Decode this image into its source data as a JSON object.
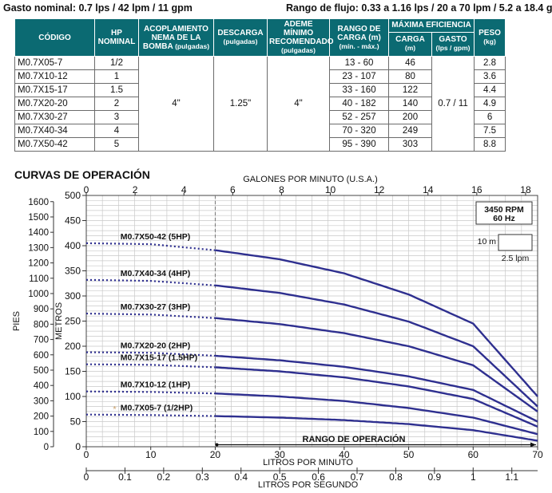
{
  "header": {
    "left": "Gasto nominal: 0.7 lps / 42 lpm / 11 gpm",
    "right": "Rango de flujo:  0.33 a 1.16 lps / 20 a 70 lpm / 5.2 a 18.4 gpm"
  },
  "table": {
    "headers": {
      "code": "CÓDIGO",
      "hp": "HP NOMINAL",
      "coupling": "ACOPLAMIENTO NEMA DE LA BOMBA",
      "coupling_unit": "(pulgadas)",
      "discharge": "DESCARGA",
      "discharge_unit": "(pulgadas)",
      "casing": "ADEME MÍNIMO RECOMENDADO",
      "casing_unit": "(pulgadas)",
      "range": "RANGO DE CARGA (m)",
      "range_unit": "(mín. - máx.)",
      "efficiency": "MÁXIMA EFICIENCIA",
      "load": "CARGA",
      "load_unit": "(m)",
      "flow": "GASTO",
      "flow_unit": "(lps / gpm)",
      "weight": "PESO",
      "weight_unit": "(kg)"
    },
    "rows": [
      {
        "code": "M0.7X05-7",
        "hp": "1/2",
        "range": "13 - 60",
        "load": "46",
        "weight": "2.8"
      },
      {
        "code": "M0.7X10-12",
        "hp": "1",
        "range": "23 - 107",
        "load": "80",
        "weight": "3.6"
      },
      {
        "code": "M0.7X15-17",
        "hp": "1.5",
        "range": "33 - 160",
        "load": "122",
        "weight": "4.4"
      },
      {
        "code": "M0.7X20-20",
        "hp": "2",
        "range": "40 - 182",
        "load": "140",
        "weight": "4.9"
      },
      {
        "code": "M0.7X30-27",
        "hp": "3",
        "range": "52 - 257",
        "load": "200",
        "weight": "6"
      },
      {
        "code": "M0.7X40-34",
        "hp": "4",
        "range": "70 - 320",
        "load": "249",
        "weight": "7.5"
      },
      {
        "code": "M0.7X50-42",
        "hp": "5",
        "range": "95 - 390",
        "load": "303",
        "weight": "8.8"
      }
    ],
    "merged": {
      "coupling": "4\"",
      "discharge": "1.25\"",
      "casing": "4\"",
      "flow": "0.7 / 11"
    }
  },
  "chart_data": {
    "type": "line",
    "title": "CURVAS DE OPERACIÓN",
    "xlabel": "LITROS POR MINUTO",
    "ylabel": "METROS",
    "xlim": [
      0,
      70
    ],
    "ylim": [
      0,
      500
    ],
    "xticks": [
      0,
      10,
      20,
      30,
      40,
      50,
      60,
      70
    ],
    "yticks": [
      0,
      50,
      100,
      150,
      200,
      250,
      300,
      350,
      400,
      450,
      500
    ],
    "grid": true,
    "top_axis": {
      "label": "GALONES POR MINUTO (U.S.A.)",
      "lim": [
        0,
        18.5
      ],
      "ticks": [
        0,
        2,
        4,
        6,
        8,
        10,
        12,
        14,
        16,
        18
      ]
    },
    "left_axis": {
      "label": "PIES",
      "lim": [
        0,
        1640
      ],
      "ticks": [
        0,
        100,
        200,
        300,
        400,
        500,
        600,
        700,
        800,
        900,
        1000,
        1100,
        1200,
        1300,
        1400,
        1500,
        1600
      ]
    },
    "bottom_axis2": {
      "label": "LITROS POR SEGUNDO",
      "lim": [
        0,
        1.167
      ],
      "ticks": [
        "0",
        "0.1",
        "0.2",
        "0.3",
        "0.4",
        "0.5",
        "0.6",
        "0.7",
        "0.8",
        "0.9",
        "1",
        "1.1"
      ]
    },
    "operating_range": {
      "label": "RANGO DE OPERACIÓN",
      "start": 20,
      "end": 70
    },
    "legend_box": {
      "rpm": "3450 RPM",
      "hz": "60 Hz",
      "scale_y": "10 m",
      "scale_x": "2.5 lpm"
    },
    "marker_note": "*",
    "series": [
      {
        "name": "M0.7X05-7 (1/2HP)",
        "x": [
          0,
          10,
          20,
          30,
          40,
          50,
          60,
          70
        ],
        "y": [
          64,
          63,
          61,
          58,
          53,
          45,
          33,
          12
        ]
      },
      {
        "name": "M0.7X10-12 (1HP)",
        "x": [
          0,
          10,
          20,
          30,
          40,
          50,
          60,
          70
        ],
        "y": [
          110,
          109,
          106,
          100,
          91,
          77,
          58,
          25
        ]
      },
      {
        "name": "M0.7X15-17 (1.5HP)",
        "x": [
          0,
          10,
          20,
          30,
          40,
          50,
          60,
          70
        ],
        "y": [
          164,
          163,
          158,
          150,
          138,
          120,
          95,
          40
        ]
      },
      {
        "name": "M0.7X20-20 (2HP)",
        "x": [
          0,
          10,
          20,
          30,
          40,
          50,
          60,
          70
        ],
        "y": [
          188,
          187,
          181,
          172,
          159,
          140,
          113,
          50
        ]
      },
      {
        "name": "M0.7X30-27 (3HP)",
        "x": [
          0,
          10,
          20,
          30,
          40,
          50,
          60,
          70
        ],
        "y": [
          265,
          263,
          256,
          244,
          226,
          200,
          162,
          70
        ]
      },
      {
        "name": "M0.7X40-34 (4HP)",
        "x": [
          0,
          10,
          20,
          30,
          40,
          50,
          60,
          70
        ],
        "y": [
          332,
          330,
          321,
          306,
          283,
          249,
          200,
          80
        ]
      },
      {
        "name": "M0.7X50-42 (5HP)",
        "x": [
          0,
          10,
          20,
          30,
          40,
          50,
          60,
          70
        ],
        "y": [
          405,
          403,
          391,
          373,
          345,
          303,
          245,
          100
        ]
      }
    ]
  }
}
